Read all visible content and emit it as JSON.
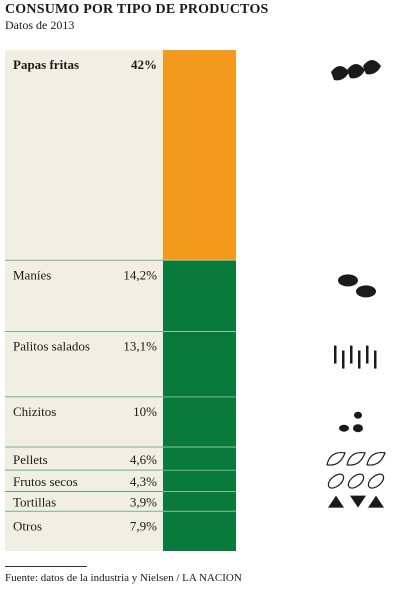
{
  "title": "CONSUMO POR TIPO DE PRODUCTOS",
  "subtitle": "Datos de 2013",
  "source": "Fuente: datos de la industria y Nielsen / LA NACION",
  "chart_data": {
    "type": "bar",
    "orientation": "stacked-100",
    "categories": [
      "Papas fritas",
      "Maníes",
      "Palitos salados",
      "Chizitos",
      "Pellets",
      "Frutos secos",
      "Tortillas",
      "Otros"
    ],
    "values": [
      42,
      14.2,
      13.1,
      10,
      4.6,
      4.3,
      3.9,
      7.9
    ],
    "value_labels": [
      "42%",
      "14,2%",
      "13,1%",
      "10%",
      "4,6%",
      "4,3%",
      "3,9%",
      "7,9%"
    ],
    "icons": [
      "chips-icon",
      "peanuts-icon",
      "sticks-icon",
      "cheese-puffs-icon",
      "pellets-icon",
      "nuts-icon",
      "tortilla-chips-icon",
      ""
    ],
    "colors": {
      "highlight": "#F39A1E",
      "bar": "#0A7A3C",
      "panel": "#F1EFE3",
      "divider": "#1E7A3E"
    }
  }
}
